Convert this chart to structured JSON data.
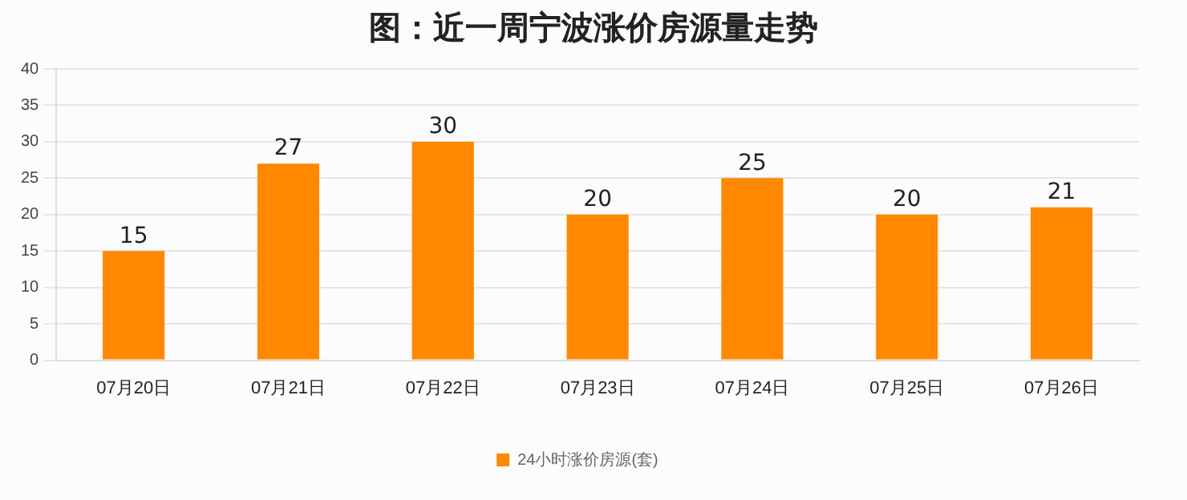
{
  "chart_data": {
    "type": "bar",
    "title": "图：近一周宁波涨价房源量走势",
    "categories": [
      "07月20日",
      "07月21日",
      "07月22日",
      "07月23日",
      "07月24日",
      "07月25日",
      "07月26日"
    ],
    "series": [
      {
        "name": "24小时涨价房源(套)",
        "color": "#ff8800",
        "values": [
          15,
          27,
          30,
          20,
          25,
          20,
          21
        ]
      }
    ],
    "ylim": [
      0,
      40
    ],
    "yticks": [
      0,
      5,
      10,
      15,
      20,
      25,
      30,
      35,
      40
    ],
    "grid": "y",
    "legend": "bottom",
    "data_labels": true
  }
}
